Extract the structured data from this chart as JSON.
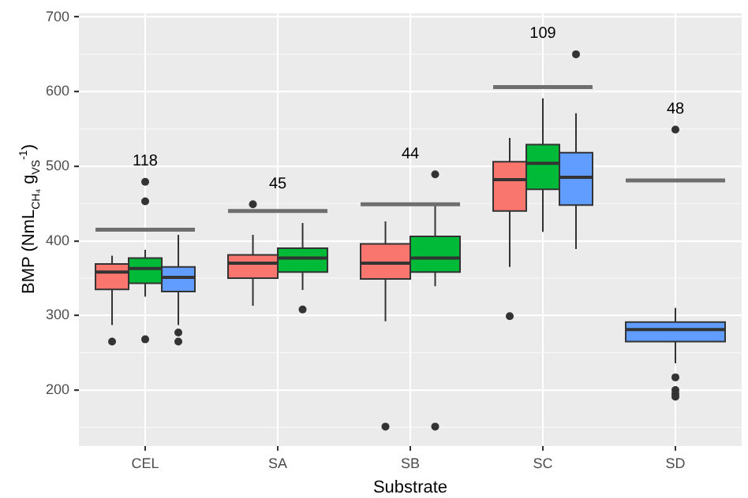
{
  "chart_data": {
    "type": "box",
    "categories": [
      "CEL",
      "SA",
      "SB",
      "SC",
      "SD"
    ],
    "xlabel": "Substrate",
    "ylabel": "BMP (NmL$_{CH₄}$ g$_{VS}$$^{-1}$)",
    "ylim": [
      125,
      705
    ],
    "yticks": [
      200,
      300,
      400,
      500,
      600,
      700
    ],
    "grid": true,
    "legend": false,
    "series": [
      {
        "color": "#f8766d",
        "boxes": [
          {
            "low": 287,
            "q1": 335,
            "median": 358,
            "q3": 369,
            "high": 380,
            "outliers": [
              265
            ]
          },
          {
            "low": 313,
            "q1": 350,
            "median": 370,
            "q3": 381,
            "high": 408,
            "outliers": [
              449
            ]
          },
          {
            "low": 292,
            "q1": 349,
            "median": 370,
            "q3": 396,
            "high": 426,
            "outliers": [
              151
            ]
          },
          {
            "low": 365,
            "q1": 440,
            "median": 482,
            "q3": 506,
            "high": 538,
            "outliers": [
              299
            ]
          },
          null
        ]
      },
      {
        "color": "#00ba38",
        "boxes": [
          {
            "low": 325,
            "q1": 343,
            "median": 363,
            "q3": 377,
            "high": 388,
            "outliers": [
              479,
              453,
              268
            ]
          },
          {
            "low": 334,
            "q1": 358,
            "median": 377,
            "q3": 390,
            "high": 424,
            "outliers": [
              308
            ]
          },
          {
            "low": 339,
            "q1": 358,
            "median": 377,
            "q3": 406,
            "high": 449,
            "outliers": [
              489,
              151
            ]
          },
          {
            "low": 412,
            "q1": 469,
            "median": 504,
            "q3": 529,
            "high": 591
          },
          null
        ]
      },
      {
        "color": "#619cff",
        "boxes": [
          {
            "low": 287,
            "q1": 332,
            "median": 351,
            "q3": 365,
            "high": 408,
            "outliers": [
              277,
              265
            ]
          },
          null,
          null,
          {
            "low": 389,
            "q1": 448,
            "median": 485,
            "q3": 518,
            "high": 571,
            "outliers": [
              650
            ]
          },
          {
            "low": 236,
            "q1": 265,
            "median": 281,
            "q3": 291,
            "high": 310,
            "outliers": [
              549,
              217,
              200,
              195,
              191
            ]
          }
        ]
      }
    ],
    "ref_lines": [
      {
        "axis": "y",
        "value": 415,
        "color": "#6e6e6e"
      },
      {
        "axis": "y",
        "value": 440,
        "color": "#6e6e6e"
      },
      {
        "axis": "y",
        "value": 449,
        "color": "#6e6e6e"
      },
      {
        "axis": "y",
        "value": 606,
        "color": "#6e6e6e"
      },
      {
        "axis": "y",
        "value": 481,
        "color": "#6e6e6e"
      }
    ],
    "annotations": [
      "118",
      "45",
      "44",
      "109",
      "48"
    ]
  }
}
